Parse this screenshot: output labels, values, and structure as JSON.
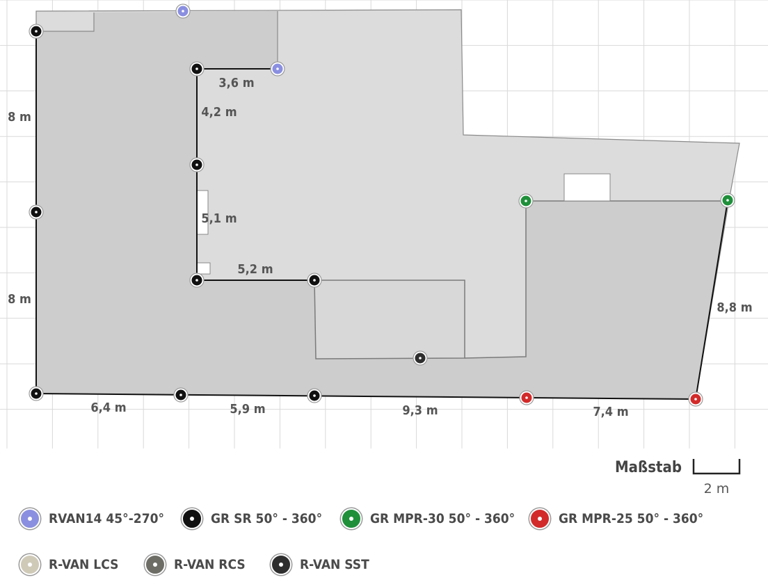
{
  "dimensions": [
    {
      "id": "top-3-6",
      "text": "3,6 m"
    },
    {
      "id": "left-upper-8",
      "text": "8 m"
    },
    {
      "id": "inner-4-2",
      "text": "4,2 m"
    },
    {
      "id": "inner-5-1",
      "text": "5,1 m"
    },
    {
      "id": "inner-5-2",
      "text": "5,2 m"
    },
    {
      "id": "left-lower-8",
      "text": "8 m"
    },
    {
      "id": "right-8-8",
      "text": "8,8 m"
    },
    {
      "id": "bottom-6-4",
      "text": "6,4 m"
    },
    {
      "id": "bottom-5-9",
      "text": "5,9 m"
    },
    {
      "id": "bottom-9-3",
      "text": "9,3 m"
    },
    {
      "id": "bottom-7-4",
      "text": "7,4 m"
    }
  ],
  "scale": {
    "title": "Maßstab",
    "value": "2 m"
  },
  "colors": {
    "RVAN14": "#8a8fe0",
    "GR_SR": "#111111",
    "GR_MPR_30": "#1f8f3a",
    "GR_MPR_25": "#d22a2a",
    "R_VAN_LCS": "#cfcab8",
    "R_VAN_RCS": "#6d6d66",
    "R_VAN_SST": "#2e2e2e"
  },
  "sprinklers": [
    {
      "type": "RVAN14"
    },
    {
      "type": "RVAN14"
    },
    {
      "type": "GR_SR"
    },
    {
      "type": "GR_SR"
    },
    {
      "type": "GR_SR"
    },
    {
      "type": "GR_SR"
    },
    {
      "type": "GR_SR"
    },
    {
      "type": "GR_SR"
    },
    {
      "type": "GR_SR"
    },
    {
      "type": "GR_SR"
    },
    {
      "type": "GR_SR"
    },
    {
      "type": "GR_MPR_30"
    },
    {
      "type": "GR_MPR_30"
    },
    {
      "type": "GR_MPR_25"
    },
    {
      "type": "GR_MPR_25"
    },
    {
      "type": "R_VAN_SST"
    }
  ],
  "legend": [
    {
      "label": "RVAN14 45°-270°",
      "color": "#8a8fe0"
    },
    {
      "label": "GR SR 50° - 360°",
      "color": "#111111"
    },
    {
      "label": "GR MPR-30 50° - 360°",
      "color": "#1f8f3a"
    },
    {
      "label": "GR MPR-25 50° - 360°",
      "color": "#d22a2a"
    },
    {
      "label": "R-VAN LCS",
      "color": "#cfcab8"
    },
    {
      "label": "R-VAN RCS",
      "color": "#6d6d66"
    },
    {
      "label": "R-VAN SST",
      "color": "#2e2e2e"
    }
  ]
}
